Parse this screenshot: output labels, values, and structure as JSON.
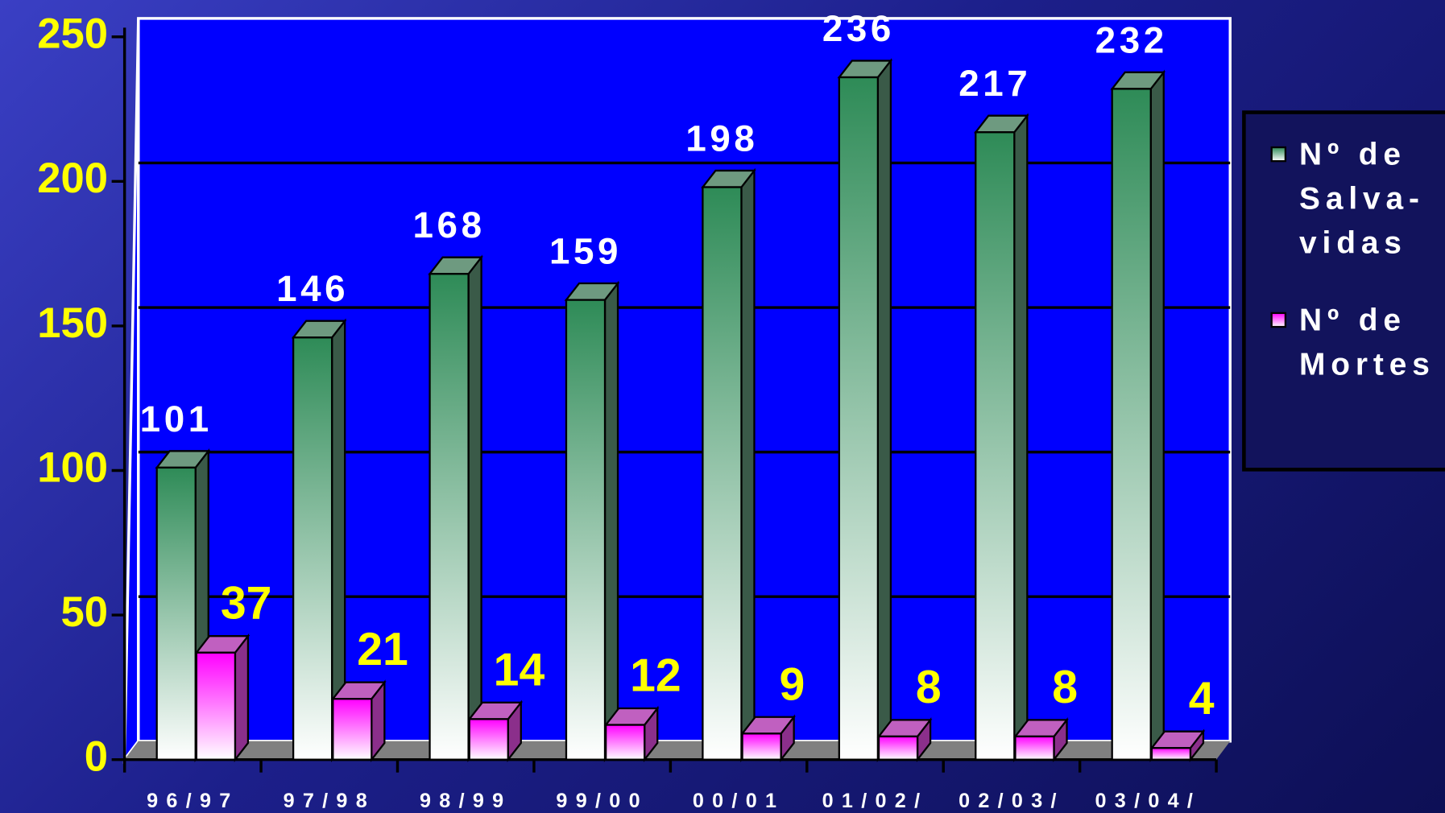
{
  "chart_data": {
    "type": "bar3d",
    "categories": [
      "96/97",
      "97/98",
      "98/99",
      "99/00",
      "00/01",
      "01/02/",
      "02/03/",
      "03/04/"
    ],
    "series": [
      {
        "name": "Nº de Salva-vidas",
        "color": "#2e8b57",
        "values": [
          101,
          146,
          168,
          159,
          198,
          236,
          217,
          232
        ]
      },
      {
        "name": "Nº de Mortes",
        "color": "#ff00ff",
        "values": [
          37,
          21,
          14,
          12,
          9,
          8,
          8,
          4
        ]
      }
    ],
    "ylim": [
      0,
      250
    ],
    "yticks": [
      0,
      50,
      100,
      150,
      200,
      250
    ],
    "grid": true,
    "legend": "right"
  }
}
